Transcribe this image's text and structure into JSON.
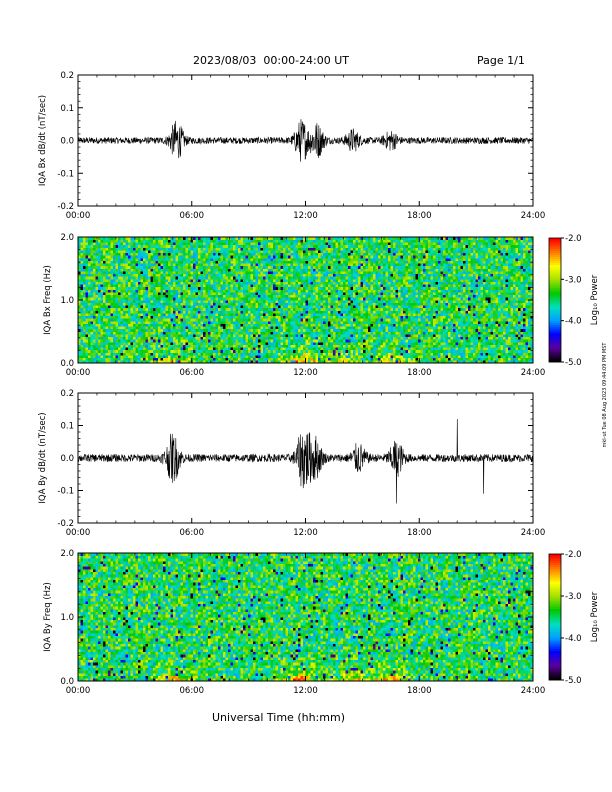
{
  "header": {
    "title": "2023/08/03  00:00-24:00 UT",
    "page": "Page 1/1"
  },
  "footer": {
    "xlabel": "Universal Time (hh:mm)"
  },
  "side_note": "mkl-ut Tue 08 Aug 2023 09:44:09 PM MST",
  "colors": {
    "trace": "#000000",
    "colormap": [
      "#000000",
      "#5a00a0",
      "#0000ff",
      "#00a0ff",
      "#00e0c0",
      "#00c800",
      "#a0e000",
      "#ffff00",
      "#ff8000",
      "#ff0000"
    ]
  },
  "chart_data": [
    {
      "type": "line",
      "ylabel": "IQA Bx dB/dt (nT/sec)",
      "xlim": [
        0,
        24
      ],
      "ylim": [
        -0.2,
        0.2
      ],
      "xticks": [
        "00:00",
        "06:00",
        "12:00",
        "18:00",
        "24:00"
      ],
      "yticks": [
        "-0.2",
        "-0.1",
        "0.0",
        "0.1",
        "0.2"
      ],
      "baseline_amplitude": 0.01,
      "bursts": [
        {
          "t": 5.2,
          "amp": 0.055
        },
        {
          "t": 11.8,
          "amp": 0.06
        },
        {
          "t": 12.6,
          "amp": 0.05
        },
        {
          "t": 14.5,
          "amp": 0.03
        },
        {
          "t": 16.5,
          "amp": 0.025
        }
      ],
      "spikes": []
    },
    {
      "type": "heatmap",
      "ylabel": "IQA Bx Freq (Hz)",
      "xlim": [
        0,
        24
      ],
      "ylim": [
        0,
        2.0
      ],
      "xticks": [
        "00:00",
        "06:00",
        "12:00",
        "18:00",
        "24:00"
      ],
      "yticks": [
        "0.0",
        "1.0",
        "2.0"
      ],
      "colorbar": {
        "label": "Log₁₀ Power",
        "range": [
          -5.0,
          -2.0
        ],
        "ticks": [
          "-2.0",
          "-3.0",
          "-4.0",
          "-5.0"
        ]
      },
      "background_power": -3.4,
      "enhancements": [
        {
          "t": 5.0,
          "power": -2.6
        },
        {
          "t": 11.8,
          "power": -2.3
        },
        {
          "t": 14.0,
          "power": -2.7
        },
        {
          "t": 16.5,
          "power": -2.6
        }
      ]
    },
    {
      "type": "line",
      "ylabel": "IQA By dB/dt (nT/sec)",
      "xlim": [
        0,
        24
      ],
      "ylim": [
        -0.2,
        0.2
      ],
      "xticks": [
        "00:00",
        "06:00",
        "12:00",
        "18:00",
        "24:00"
      ],
      "yticks": [
        "-0.2",
        "-0.1",
        "0.0",
        "0.1",
        "0.2"
      ],
      "baseline_amplitude": 0.012,
      "bursts": [
        {
          "t": 5.0,
          "amp": 0.07
        },
        {
          "t": 11.9,
          "amp": 0.09
        },
        {
          "t": 12.5,
          "amp": 0.06
        },
        {
          "t": 14.8,
          "amp": 0.04
        },
        {
          "t": 16.8,
          "amp": 0.05
        }
      ],
      "spikes": [
        {
          "t": 16.8,
          "value": -0.14
        },
        {
          "t": 20.0,
          "value": 0.12
        },
        {
          "t": 21.4,
          "value": -0.11
        }
      ]
    },
    {
      "type": "heatmap",
      "ylabel": "IQA By Freq (Hz)",
      "xlim": [
        0,
        24
      ],
      "ylim": [
        0,
        2.0
      ],
      "xticks": [
        "00:00",
        "06:00",
        "12:00",
        "18:00",
        "24:00"
      ],
      "yticks": [
        "0.0",
        "1.0",
        "2.0"
      ],
      "colorbar": {
        "label": "Log₁₀ Power",
        "range": [
          -5.0,
          -2.0
        ],
        "ticks": [
          "-2.0",
          "-3.0",
          "-4.0",
          "-5.0"
        ]
      },
      "background_power": -3.4,
      "enhancements": [
        {
          "t": 5.0,
          "power": -2.5
        },
        {
          "t": 11.8,
          "power": -2.2
        },
        {
          "t": 14.5,
          "power": -2.7
        },
        {
          "t": 16.5,
          "power": -2.5
        }
      ]
    }
  ]
}
